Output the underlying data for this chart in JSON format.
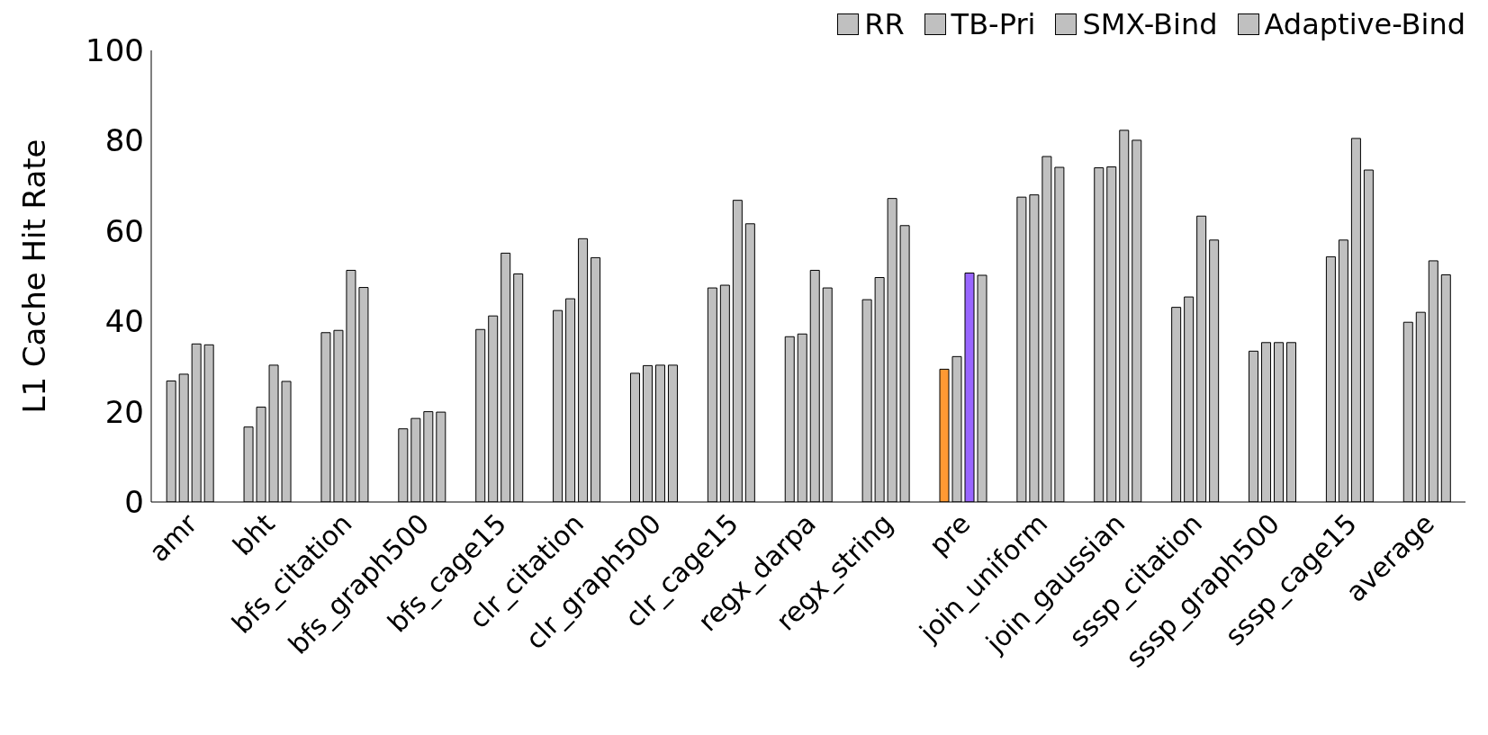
{
  "chart_data": {
    "type": "bar",
    "ylabel": "L1 Cache Hit Rate",
    "categories": [
      "amr",
      "bht",
      "bfs_citation",
      "bfs_graph500",
      "bfs_cage15",
      "clr_citation",
      "clr_graph500",
      "clr_cage15",
      "regx_darpa",
      "regx_string",
      "pre",
      "join_uniform",
      "join_gaussian",
      "sssp_citation",
      "sssp_graph500",
      "sssp_cage15",
      "average"
    ],
    "series": [
      {
        "name": "RR",
        "color": "#c0c0c0",
        "colors": [
          "#c0c0c0",
          "#c0c0c0",
          "#c0c0c0",
          "#c0c0c0",
          "#c0c0c0",
          "#c0c0c0",
          "#c0c0c0",
          "#c0c0c0",
          "#c0c0c0",
          "#c0c0c0",
          "#ff9933",
          "#c0c0c0",
          "#c0c0c0",
          "#c0c0c0",
          "#c0c0c0",
          "#c0c0c0",
          "#c0c0c0"
        ],
        "values": [
          26.8,
          16.6,
          37.5,
          16.2,
          38.2,
          42.4,
          28.5,
          47.4,
          36.6,
          44.8,
          29.4,
          67.5,
          74,
          43.1,
          33.4,
          54.3,
          39.8
        ]
      },
      {
        "name": "TB-Pri",
        "color": "#c0c0c0",
        "values": [
          28.3,
          21,
          38,
          18.5,
          41.2,
          45,
          30.2,
          48,
          37.2,
          49.7,
          32.2,
          68,
          74.2,
          45.4,
          35.3,
          58,
          42
        ]
      },
      {
        "name": "SMX-Bind",
        "color": "#c0c0c0",
        "colors": [
          "#c0c0c0",
          "#c0c0c0",
          "#c0c0c0",
          "#c0c0c0",
          "#c0c0c0",
          "#c0c0c0",
          "#c0c0c0",
          "#c0c0c0",
          "#c0c0c0",
          "#c0c0c0",
          "#9966ff",
          "#c0c0c0",
          "#c0c0c0",
          "#c0c0c0",
          "#c0c0c0",
          "#c0c0c0",
          "#c0c0c0"
        ],
        "values": [
          35,
          30.3,
          51.3,
          20,
          55.1,
          58.3,
          30.3,
          66.8,
          51.3,
          67.2,
          50.7,
          76.5,
          82.3,
          63.3,
          35.3,
          80.5,
          53.4
        ]
      },
      {
        "name": "Adaptive-Bind",
        "color": "#c0c0c0",
        "values": [
          34.8,
          26.7,
          47.5,
          19.9,
          50.5,
          54.1,
          30.3,
          61.6,
          47.4,
          61.2,
          50.2,
          74.1,
          80.1,
          58,
          35.3,
          73.5,
          50.3
        ]
      }
    ],
    "ylim": [
      0,
      100
    ],
    "yticks": [
      0,
      20,
      40,
      60,
      80,
      100
    ],
    "legend": "top right"
  }
}
